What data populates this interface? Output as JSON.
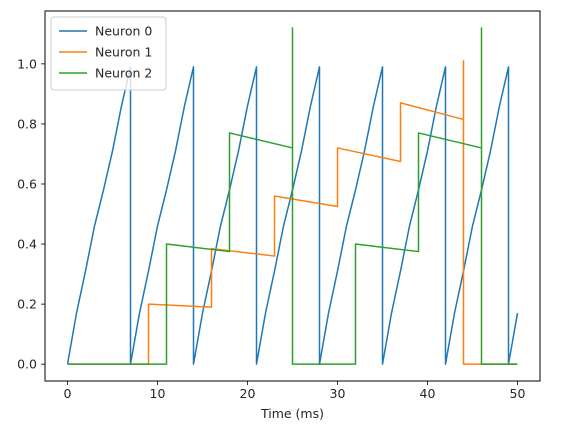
{
  "chart_data": {
    "type": "line",
    "title": "",
    "xlabel": "Time (ms)",
    "ylabel": "",
    "xlim": [
      -2.5,
      52.5
    ],
    "ylim": [
      -0.056,
      1.176
    ],
    "xticks": [
      0,
      10,
      20,
      30,
      40,
      50
    ],
    "yticks": [
      0.0,
      0.2,
      0.4,
      0.6,
      0.8,
      1.0
    ],
    "ytick_labels": [
      "0.0",
      "0.2",
      "0.4",
      "0.6",
      "0.8",
      "1.0"
    ],
    "grid": false,
    "legend_position": "upper-left",
    "series": [
      {
        "name": "Neuron 0",
        "color": "#1f77b4",
        "x": [
          0,
          1,
          2,
          3,
          4,
          5,
          6,
          7,
          7,
          7,
          8,
          9,
          10,
          11,
          12,
          13,
          14,
          14,
          14,
          15,
          16,
          17,
          18,
          19,
          20,
          21,
          21,
          21,
          22,
          23,
          24,
          25,
          26,
          27,
          28,
          28,
          28,
          29,
          30,
          31,
          32,
          33,
          34,
          35,
          35,
          35,
          36,
          37,
          38,
          39,
          40,
          41,
          42,
          42,
          42,
          43,
          44,
          45,
          46,
          47,
          48,
          49,
          49,
          49,
          50
        ],
        "y": [
          0,
          0.17,
          0.31,
          0.46,
          0.58,
          0.71,
          0.86,
          0.99,
          0,
          0,
          0.17,
          0.31,
          0.46,
          0.58,
          0.71,
          0.86,
          0.99,
          0,
          0,
          0.17,
          0.31,
          0.46,
          0.58,
          0.71,
          0.86,
          0.99,
          0,
          0,
          0.17,
          0.31,
          0.46,
          0.58,
          0.71,
          0.86,
          0.99,
          0,
          0,
          0.17,
          0.31,
          0.46,
          0.58,
          0.71,
          0.86,
          0.99,
          0,
          0,
          0.17,
          0.31,
          0.46,
          0.58,
          0.71,
          0.86,
          0.99,
          0,
          0,
          0.17,
          0.31,
          0.46,
          0.58,
          0.71,
          0.86,
          0.99,
          0,
          0,
          0.17
        ]
      },
      {
        "name": "Neuron 1",
        "color": "#ff7f0e",
        "x": [
          0,
          9,
          9,
          16,
          16,
          23,
          23,
          30,
          30,
          37,
          37,
          44,
          44,
          44,
          50
        ],
        "y": [
          0,
          0,
          0.2,
          0.19,
          0.385,
          0.36,
          0.56,
          0.525,
          0.72,
          0.675,
          0.87,
          0.815,
          1.01,
          0,
          0
        ]
      },
      {
        "name": "Neuron 2",
        "color": "#2ca02c",
        "x": [
          0,
          11,
          11,
          18,
          18,
          25,
          25,
          25,
          32,
          32,
          39,
          39,
          46,
          46,
          46,
          50
        ],
        "y": [
          0,
          0,
          0.4,
          0.375,
          0.77,
          0.72,
          1.12,
          0,
          0,
          0.4,
          0.375,
          0.77,
          0.72,
          1.12,
          0,
          0
        ]
      }
    ]
  }
}
